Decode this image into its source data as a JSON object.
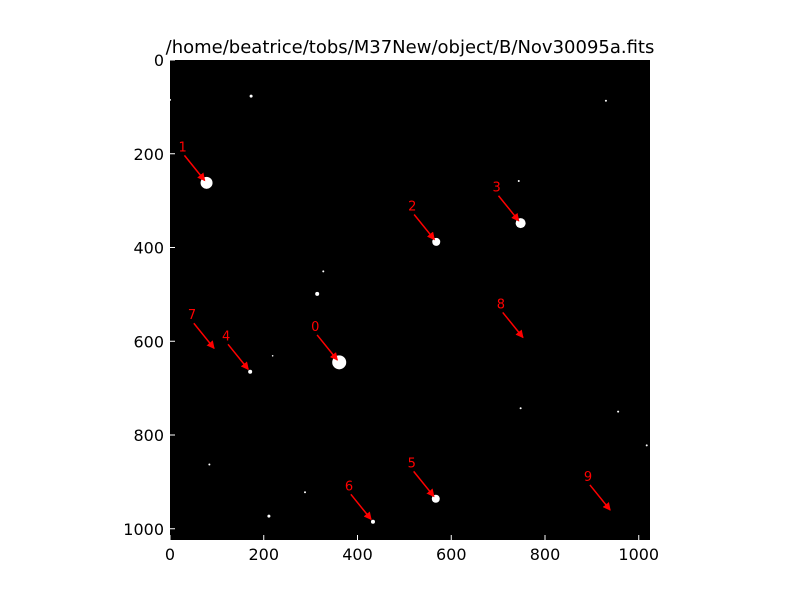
{
  "chart_data": {
    "type": "scatter",
    "title": "/home/beatrice/tobs/M37New/object/B/Nov30095a.fits",
    "xlim": [
      0,
      1024
    ],
    "ylim": [
      0,
      1024
    ],
    "y_inverted": true,
    "x_ticks": [
      0,
      200,
      400,
      600,
      800,
      1000
    ],
    "x_tick_labels": [
      "0",
      "200",
      "400",
      "600",
      "800",
      "1000"
    ],
    "y_ticks": [
      0,
      200,
      400,
      600,
      800,
      1000
    ],
    "y_tick_labels": [
      "0",
      "200",
      "400",
      "600",
      "800",
      "1000"
    ],
    "background": "#000000",
    "star_color": "#ffffff",
    "annotation_color": "#ff0000",
    "stars": [
      {
        "x": 78,
        "y": 262,
        "r": 6
      },
      {
        "x": 568,
        "y": 388,
        "r": 4
      },
      {
        "x": 748,
        "y": 348,
        "r": 5
      },
      {
        "x": 361,
        "y": 645,
        "r": 7
      },
      {
        "x": 171,
        "y": 665,
        "r": 2
      },
      {
        "x": 567,
        "y": 936,
        "r": 4
      },
      {
        "x": 433,
        "y": 985,
        "r": 2
      },
      {
        "x": 314,
        "y": 499,
        "r": 2
      },
      {
        "x": 173,
        "y": 77,
        "r": 1.5
      },
      {
        "x": 744,
        "y": 258,
        "r": 1
      },
      {
        "x": 0,
        "y": 85,
        "r": 1
      },
      {
        "x": 930,
        "y": 87,
        "r": 1
      },
      {
        "x": 327,
        "y": 451,
        "r": 1
      },
      {
        "x": 748,
        "y": 743,
        "r": 1
      },
      {
        "x": 956,
        "y": 750,
        "r": 1
      },
      {
        "x": 1017,
        "y": 822,
        "r": 1
      },
      {
        "x": 84,
        "y": 863,
        "r": 1
      },
      {
        "x": 288,
        "y": 922,
        "r": 1
      },
      {
        "x": 211,
        "y": 973,
        "r": 1.5
      },
      {
        "x": 219,
        "y": 631,
        "r": 0.8
      }
    ],
    "annotations": [
      {
        "label": "1",
        "text_x": 18,
        "text_y": 195,
        "arrow_x": 78,
        "arrow_y": 262
      },
      {
        "label": "2",
        "text_x": 508,
        "text_y": 321,
        "arrow_x": 568,
        "arrow_y": 388
      },
      {
        "label": "3",
        "text_x": 688,
        "text_y": 281,
        "arrow_x": 748,
        "arrow_y": 348
      },
      {
        "label": "0",
        "text_x": 301,
        "text_y": 578,
        "arrow_x": 361,
        "arrow_y": 645
      },
      {
        "label": "4",
        "text_x": 111,
        "text_y": 598,
        "arrow_x": 171,
        "arrow_y": 665
      },
      {
        "label": "7",
        "text_x": 38,
        "text_y": 553,
        "arrow_x": 98,
        "arrow_y": 620
      },
      {
        "label": "8",
        "text_x": 697,
        "text_y": 530,
        "arrow_x": 757,
        "arrow_y": 597
      },
      {
        "label": "5",
        "text_x": 507,
        "text_y": 869,
        "arrow_x": 567,
        "arrow_y": 936
      },
      {
        "label": "6",
        "text_x": 373,
        "text_y": 918,
        "arrow_x": 433,
        "arrow_y": 985
      },
      {
        "label": "9",
        "text_x": 883,
        "text_y": 898,
        "arrow_x": 943,
        "arrow_y": 965
      }
    ]
  }
}
